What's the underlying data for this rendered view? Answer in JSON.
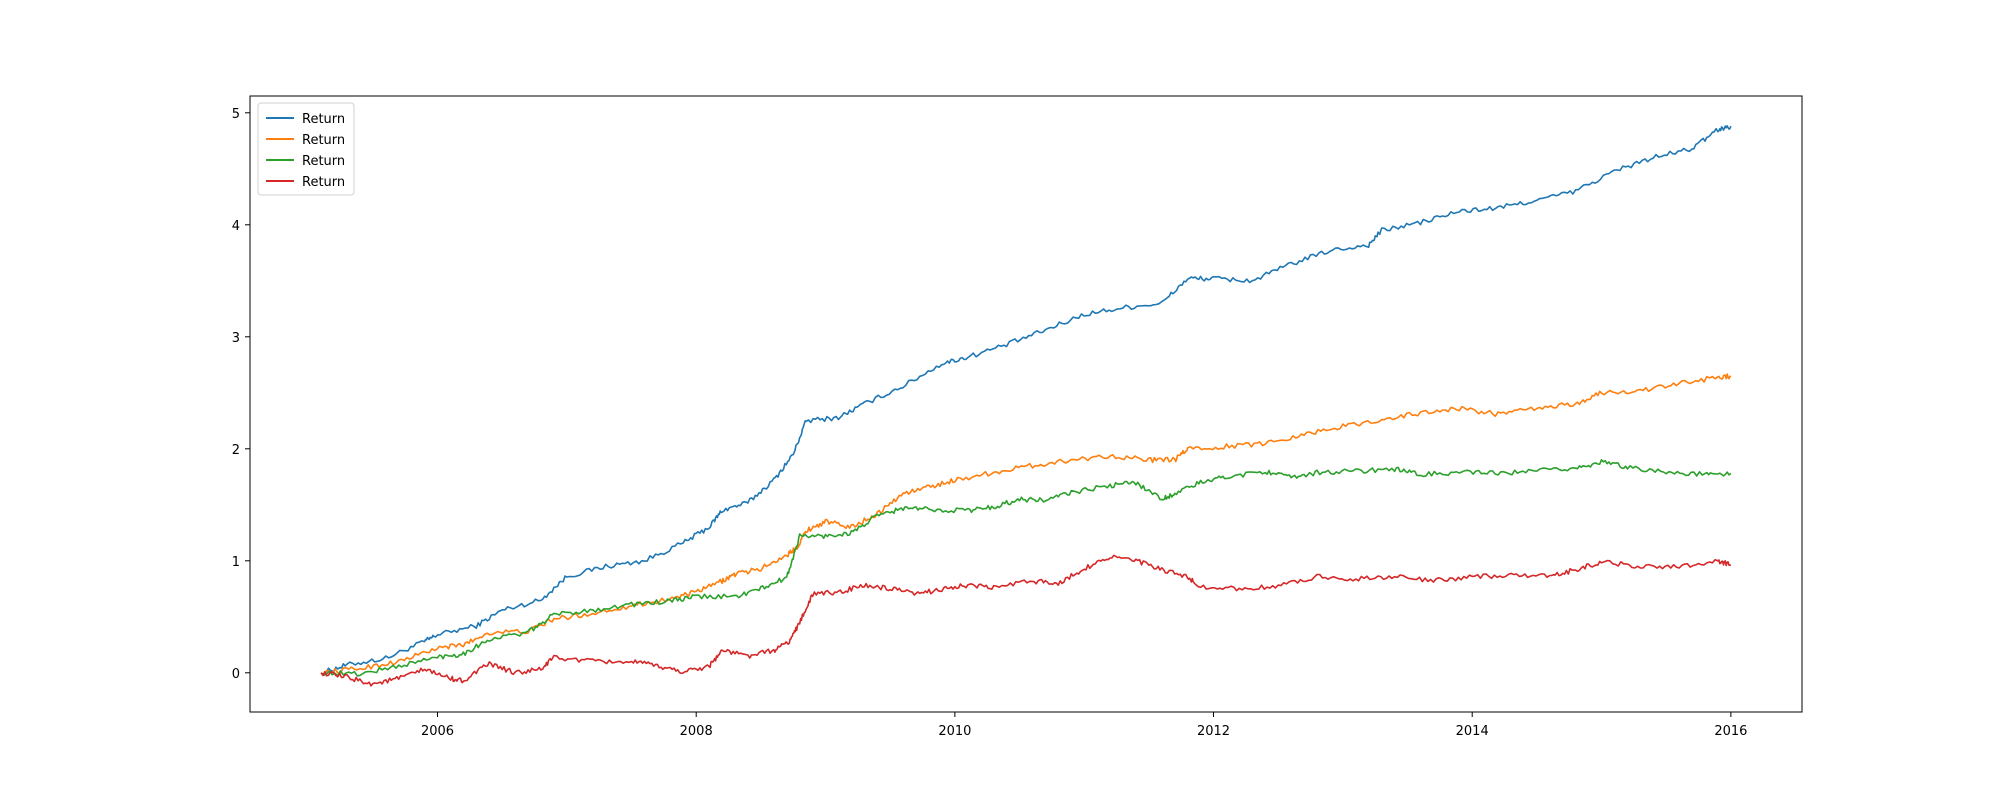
{
  "chart_data": {
    "type": "line",
    "title": "",
    "xlabel": "",
    "ylabel": "",
    "xlim": [
      2004.55,
      2016.55
    ],
    "ylim": [
      -0.35,
      5.15
    ],
    "x_ticks": [
      2006,
      2008,
      2010,
      2012,
      2014,
      2016
    ],
    "x_tick_labels": [
      "2006",
      "2008",
      "2010",
      "2012",
      "2014",
      "2016"
    ],
    "y_ticks": [
      0,
      1,
      2,
      3,
      4,
      5
    ],
    "y_tick_labels": [
      "0",
      "1",
      "2",
      "3",
      "4",
      "5"
    ],
    "grid": false,
    "legend": {
      "placement": "top-left",
      "entries": [
        "Return",
        "Return",
        "Return",
        "Return"
      ]
    },
    "series": [
      {
        "name": "Return",
        "color": "#1f77b4",
        "points": [
          [
            2005.1,
            0.0
          ],
          [
            2005.3,
            0.07
          ],
          [
            2005.6,
            0.13
          ],
          [
            2005.9,
            0.28
          ],
          [
            2006.0,
            0.34
          ],
          [
            2006.3,
            0.42
          ],
          [
            2006.5,
            0.56
          ],
          [
            2006.8,
            0.65
          ],
          [
            2007.0,
            0.86
          ],
          [
            2007.3,
            0.95
          ],
          [
            2007.6,
            1.0
          ],
          [
            2007.9,
            1.16
          ],
          [
            2008.1,
            1.3
          ],
          [
            2008.2,
            1.45
          ],
          [
            2008.4,
            1.52
          ],
          [
            2008.6,
            1.72
          ],
          [
            2008.75,
            1.95
          ],
          [
            2008.85,
            2.25
          ],
          [
            2009.1,
            2.28
          ],
          [
            2009.3,
            2.4
          ],
          [
            2009.6,
            2.56
          ],
          [
            2009.9,
            2.76
          ],
          [
            2010.1,
            2.82
          ],
          [
            2010.4,
            2.93
          ],
          [
            2010.7,
            3.06
          ],
          [
            2011.0,
            3.2
          ],
          [
            2011.3,
            3.26
          ],
          [
            2011.6,
            3.3
          ],
          [
            2011.8,
            3.52
          ],
          [
            2012.0,
            3.52
          ],
          [
            2012.3,
            3.5
          ],
          [
            2012.6,
            3.65
          ],
          [
            2012.9,
            3.77
          ],
          [
            2013.2,
            3.82
          ],
          [
            2013.3,
            3.95
          ],
          [
            2013.6,
            4.02
          ],
          [
            2013.9,
            4.12
          ],
          [
            2014.2,
            4.15
          ],
          [
            2014.5,
            4.22
          ],
          [
            2014.8,
            4.3
          ],
          [
            2015.1,
            4.48
          ],
          [
            2015.4,
            4.6
          ],
          [
            2015.7,
            4.68
          ],
          [
            2015.9,
            4.85
          ],
          [
            2016.0,
            4.88
          ]
        ]
      },
      {
        "name": "Return",
        "color": "#ff7f0e",
        "points": [
          [
            2005.1,
            0.0
          ],
          [
            2005.4,
            0.04
          ],
          [
            2005.7,
            0.1
          ],
          [
            2006.0,
            0.22
          ],
          [
            2006.2,
            0.25
          ],
          [
            2006.4,
            0.36
          ],
          [
            2006.7,
            0.37
          ],
          [
            2006.9,
            0.48
          ],
          [
            2007.2,
            0.53
          ],
          [
            2007.5,
            0.6
          ],
          [
            2007.8,
            0.66
          ],
          [
            2008.0,
            0.72
          ],
          [
            2008.2,
            0.82
          ],
          [
            2008.3,
            0.88
          ],
          [
            2008.5,
            0.93
          ],
          [
            2008.7,
            1.05
          ],
          [
            2008.78,
            1.12
          ],
          [
            2008.85,
            1.27
          ],
          [
            2009.0,
            1.35
          ],
          [
            2009.2,
            1.3
          ],
          [
            2009.4,
            1.42
          ],
          [
            2009.6,
            1.6
          ],
          [
            2009.8,
            1.66
          ],
          [
            2010.0,
            1.72
          ],
          [
            2010.3,
            1.79
          ],
          [
            2010.6,
            1.85
          ],
          [
            2010.9,
            1.9
          ],
          [
            2011.2,
            1.94
          ],
          [
            2011.5,
            1.9
          ],
          [
            2011.7,
            1.9
          ],
          [
            2011.8,
            2.0
          ],
          [
            2012.1,
            2.02
          ],
          [
            2012.4,
            2.05
          ],
          [
            2012.7,
            2.13
          ],
          [
            2013.0,
            2.2
          ],
          [
            2013.3,
            2.26
          ],
          [
            2013.6,
            2.32
          ],
          [
            2013.9,
            2.36
          ],
          [
            2014.2,
            2.31
          ],
          [
            2014.5,
            2.36
          ],
          [
            2014.8,
            2.4
          ],
          [
            2015.0,
            2.5
          ],
          [
            2015.3,
            2.52
          ],
          [
            2015.6,
            2.58
          ],
          [
            2015.9,
            2.64
          ],
          [
            2016.0,
            2.65
          ]
        ]
      },
      {
        "name": "Return",
        "color": "#2ca02c",
        "points": [
          [
            2005.1,
            0.0
          ],
          [
            2005.4,
            -0.01
          ],
          [
            2005.7,
            0.06
          ],
          [
            2006.0,
            0.14
          ],
          [
            2006.2,
            0.17
          ],
          [
            2006.4,
            0.3
          ],
          [
            2006.7,
            0.36
          ],
          [
            2006.9,
            0.52
          ],
          [
            2007.2,
            0.56
          ],
          [
            2007.5,
            0.61
          ],
          [
            2007.8,
            0.64
          ],
          [
            2008.0,
            0.68
          ],
          [
            2008.3,
            0.68
          ],
          [
            2008.5,
            0.75
          ],
          [
            2008.7,
            0.85
          ],
          [
            2008.8,
            1.22
          ],
          [
            2009.0,
            1.22
          ],
          [
            2009.2,
            1.25
          ],
          [
            2009.4,
            1.4
          ],
          [
            2009.6,
            1.47
          ],
          [
            2009.8,
            1.46
          ],
          [
            2010.1,
            1.45
          ],
          [
            2010.3,
            1.48
          ],
          [
            2010.5,
            1.55
          ],
          [
            2010.7,
            1.54
          ],
          [
            2010.9,
            1.61
          ],
          [
            2011.2,
            1.67
          ],
          [
            2011.4,
            1.7
          ],
          [
            2011.6,
            1.55
          ],
          [
            2011.7,
            1.6
          ],
          [
            2011.9,
            1.7
          ],
          [
            2012.1,
            1.75
          ],
          [
            2012.4,
            1.8
          ],
          [
            2012.6,
            1.74
          ],
          [
            2012.8,
            1.79
          ],
          [
            2013.1,
            1.8
          ],
          [
            2013.4,
            1.82
          ],
          [
            2013.6,
            1.77
          ],
          [
            2013.9,
            1.79
          ],
          [
            2014.2,
            1.78
          ],
          [
            2014.5,
            1.8
          ],
          [
            2014.8,
            1.83
          ],
          [
            2015.0,
            1.88
          ],
          [
            2015.2,
            1.84
          ],
          [
            2015.5,
            1.79
          ],
          [
            2015.8,
            1.77
          ],
          [
            2016.0,
            1.78
          ]
        ]
      },
      {
        "name": "Return",
        "color": "#d62728",
        "points": [
          [
            2005.1,
            0.0
          ],
          [
            2005.3,
            -0.04
          ],
          [
            2005.5,
            -0.1
          ],
          [
            2005.7,
            -0.05
          ],
          [
            2005.9,
            0.03
          ],
          [
            2006.1,
            -0.05
          ],
          [
            2006.2,
            -0.07
          ],
          [
            2006.4,
            0.08
          ],
          [
            2006.6,
            0.0
          ],
          [
            2006.8,
            0.03
          ],
          [
            2006.9,
            0.14
          ],
          [
            2007.2,
            0.1
          ],
          [
            2007.5,
            0.1
          ],
          [
            2007.7,
            0.06
          ],
          [
            2007.9,
            0.01
          ],
          [
            2008.1,
            0.06
          ],
          [
            2008.2,
            0.2
          ],
          [
            2008.4,
            0.15
          ],
          [
            2008.6,
            0.2
          ],
          [
            2008.72,
            0.28
          ],
          [
            2008.8,
            0.45
          ],
          [
            2008.9,
            0.7
          ],
          [
            2009.1,
            0.72
          ],
          [
            2009.3,
            0.78
          ],
          [
            2009.5,
            0.75
          ],
          [
            2009.7,
            0.7
          ],
          [
            2009.9,
            0.75
          ],
          [
            2010.1,
            0.78
          ],
          [
            2010.3,
            0.76
          ],
          [
            2010.6,
            0.82
          ],
          [
            2010.8,
            0.8
          ],
          [
            2011.0,
            0.93
          ],
          [
            2011.2,
            1.04
          ],
          [
            2011.4,
            1.0
          ],
          [
            2011.6,
            0.92
          ],
          [
            2011.8,
            0.85
          ],
          [
            2011.9,
            0.77
          ],
          [
            2012.2,
            0.75
          ],
          [
            2012.5,
            0.77
          ],
          [
            2012.8,
            0.86
          ],
          [
            2013.1,
            0.84
          ],
          [
            2013.4,
            0.86
          ],
          [
            2013.7,
            0.82
          ],
          [
            2014.0,
            0.86
          ],
          [
            2014.3,
            0.87
          ],
          [
            2014.6,
            0.86
          ],
          [
            2014.8,
            0.92
          ],
          [
            2015.0,
            0.99
          ],
          [
            2015.3,
            0.95
          ],
          [
            2015.6,
            0.95
          ],
          [
            2015.9,
            1.0
          ],
          [
            2016.0,
            0.96
          ]
        ]
      }
    ]
  }
}
